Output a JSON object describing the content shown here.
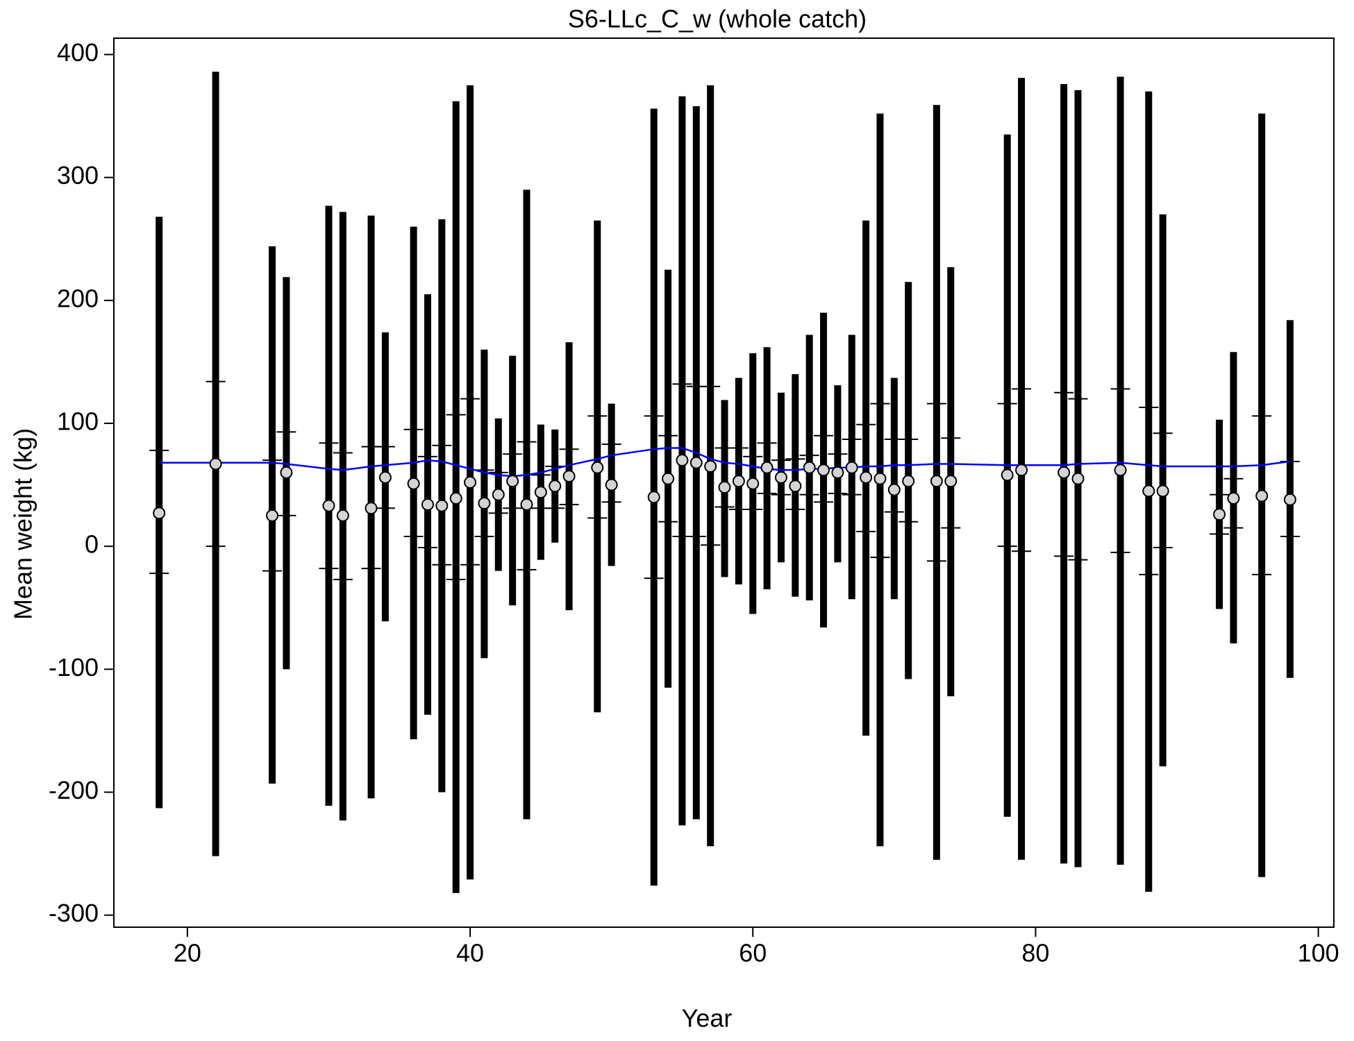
{
  "chart_data": {
    "type": "errorbar",
    "title": "S6-LLc_C_w (whole catch)",
    "x_label": "Year",
    "y_label": "Mean weight (kg)",
    "xlim": [
      14.8,
      101.1
    ],
    "ylim": [
      -309.8,
      413.3
    ],
    "xticks": [
      20,
      40,
      60,
      80,
      100
    ],
    "yticks": [
      -300,
      -200,
      -100,
      0,
      100,
      200,
      300,
      400
    ],
    "point_color": "#d3d3d3",
    "bar_color": "#000000",
    "line_color": "#0000ff",
    "x": [
      18,
      22,
      26,
      27,
      30,
      31,
      33,
      34,
      36,
      37,
      38,
      39,
      40,
      41,
      42,
      43,
      44,
      45,
      46,
      47,
      49,
      50,
      53,
      54,
      55,
      56,
      57,
      58,
      59,
      60,
      61,
      62,
      63,
      64,
      65,
      66,
      67,
      68,
      69,
      70,
      71,
      73,
      74,
      78,
      79,
      82,
      83,
      86,
      88,
      89,
      93,
      94,
      96,
      98
    ],
    "values": [
      27,
      67,
      25,
      60,
      33,
      25,
      31,
      56,
      51,
      34,
      33,
      39,
      52,
      35,
      42,
      53,
      34,
      44,
      49,
      57,
      64,
      50,
      40,
      55,
      70,
      68,
      65,
      48,
      53,
      51,
      64,
      56,
      49,
      64,
      62,
      60,
      64,
      56,
      55,
      46,
      53,
      53,
      53,
      58,
      62,
      60,
      55,
      62,
      45,
      45,
      26,
      39,
      41,
      38
    ],
    "outer_upper": [
      268,
      386,
      244,
      219,
      277,
      272,
      269,
      174,
      260,
      205,
      266,
      362,
      375,
      160,
      104,
      155,
      290,
      99,
      95,
      166,
      265,
      116,
      356,
      225,
      366,
      358,
      375,
      119,
      137,
      157,
      162,
      125,
      140,
      172,
      190,
      131,
      172,
      265,
      352,
      137,
      215,
      359,
      227,
      335,
      381,
      376,
      371,
      382,
      370,
      270,
      103,
      158,
      352,
      184
    ],
    "outer_lower": [
      -213,
      -252,
      -193,
      -100,
      -211,
      -223,
      -205,
      -61,
      -157,
      -137,
      -200,
      -282,
      -271,
      -91,
      -20,
      -48,
      -222,
      -11,
      3,
      -52,
      -135,
      -16,
      -276,
      -115,
      -227,
      -222,
      -244,
      -25,
      -31,
      -55,
      -35,
      -13,
      -41,
      -44,
      -66,
      -13,
      -43,
      -154,
      -244,
      -43,
      -108,
      -255,
      -122,
      -220,
      -255,
      -258,
      -261,
      -259,
      -281,
      -179,
      -51,
      -79,
      -269,
      -107
    ],
    "inner_upper": [
      78,
      134,
      70,
      93,
      84,
      76,
      81,
      81,
      95,
      73,
      82,
      107,
      120,
      62,
      60,
      75,
      85,
      58,
      65,
      79,
      106,
      83,
      106,
      90,
      132,
      130,
      130,
      80,
      80,
      73,
      84,
      70,
      71,
      74,
      90,
      75,
      87,
      99,
      116,
      87,
      87,
      116,
      88,
      116,
      128,
      125,
      120,
      128,
      113,
      92,
      42,
      55,
      106,
      69
    ],
    "inner_lower": [
      -22,
      0,
      -20,
      25,
      -18,
      -27,
      -18,
      31,
      8,
      -1,
      -15,
      -27,
      -15,
      8,
      27,
      31,
      -19,
      31,
      31,
      34,
      23,
      36,
      -26,
      20,
      8,
      8,
      1,
      32,
      30,
      30,
      43,
      42,
      30,
      42,
      36,
      43,
      42,
      12,
      -9,
      28,
      20,
      -12,
      15,
      0,
      -4,
      -8,
      -11,
      -5,
      -23,
      -1,
      10,
      15,
      -23,
      8
    ],
    "expected": [
      68,
      68,
      68,
      67,
      63,
      62,
      65,
      66,
      68,
      70,
      69,
      66,
      63,
      60,
      58,
      57,
      58,
      60,
      63,
      66,
      71,
      74,
      79,
      80,
      80,
      76,
      71,
      68,
      67,
      65,
      63,
      62,
      62,
      63,
      63,
      64,
      64,
      65,
      65,
      66,
      66,
      67,
      67,
      66,
      66,
      66,
      67,
      68,
      66,
      65,
      65,
      65,
      66,
      69
    ]
  }
}
